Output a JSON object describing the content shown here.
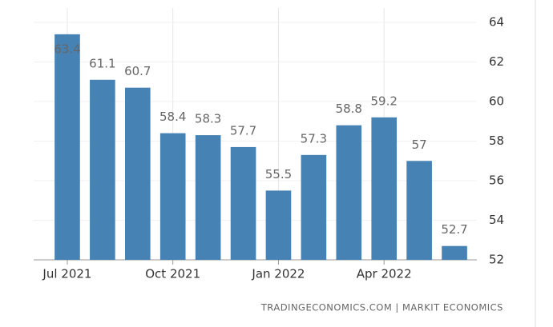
{
  "chart_data": {
    "type": "bar",
    "categories": [
      "Jul 2021",
      null,
      null,
      "Oct 2021",
      null,
      null,
      "Jan 2022",
      null,
      null,
      "Apr 2022",
      null,
      null
    ],
    "values": [
      63.4,
      61.1,
      60.7,
      58.4,
      58.3,
      57.7,
      55.5,
      57.3,
      58.8,
      59.2,
      57,
      52.7
    ],
    "color": "#4682b4",
    "ylim": [
      52,
      64
    ],
    "yticks": [
      52,
      54,
      56,
      58,
      60,
      62,
      64
    ],
    "source": "TRADINGECONOMICS.COM  |  MARKIT ECONOMICS"
  }
}
